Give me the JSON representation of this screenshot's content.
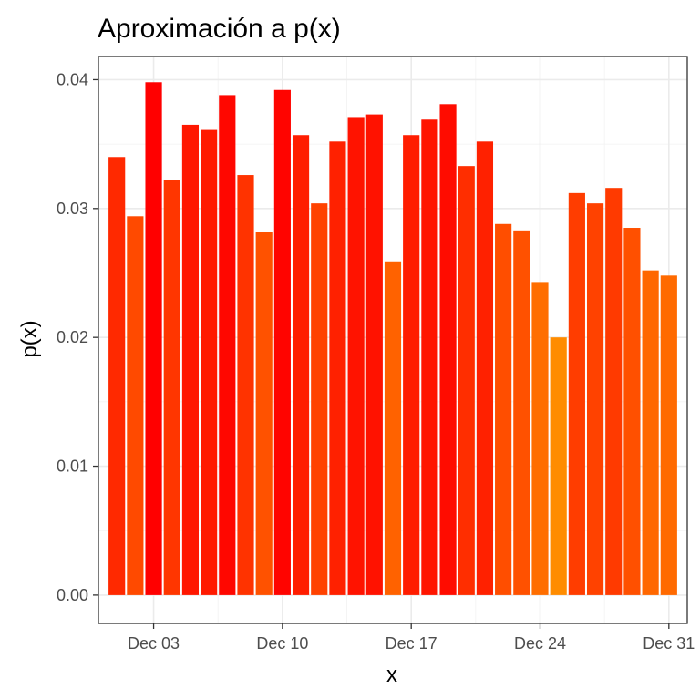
{
  "chart_data": {
    "type": "bar",
    "title": "Aproximación a p(x)",
    "xlabel": "x",
    "ylabel": "p(x)",
    "ylim": [
      -0.0022,
      0.0418
    ],
    "yticks": [
      0.0,
      0.01,
      0.02,
      0.03,
      0.04
    ],
    "ytick_labels": [
      "0.00",
      "0.01",
      "0.02",
      "0.03",
      "0.04"
    ],
    "xticks": [
      "2020-12-03",
      "2020-12-10",
      "2020-12-17",
      "2020-12-24",
      "2020-12-31"
    ],
    "xtick_labels": [
      "Dec 03",
      "Dec 10",
      "Dec 17",
      "Dec 24",
      "Dec 31"
    ],
    "xlim": [
      "2020-11-30",
      "2021-01-01"
    ],
    "grid": true,
    "legend": "none",
    "color_low": "#FF8C00",
    "color_high": "#FF0000",
    "categories": [
      "2020-12-01",
      "2020-12-02",
      "2020-12-03",
      "2020-12-04",
      "2020-12-05",
      "2020-12-06",
      "2020-12-07",
      "2020-12-08",
      "2020-12-09",
      "2020-12-10",
      "2020-12-11",
      "2020-12-12",
      "2020-12-13",
      "2020-12-14",
      "2020-12-15",
      "2020-12-16",
      "2020-12-17",
      "2020-12-18",
      "2020-12-19",
      "2020-12-20",
      "2020-12-21",
      "2020-12-22",
      "2020-12-23",
      "2020-12-24",
      "2020-12-25",
      "2020-12-26",
      "2020-12-27",
      "2020-12-28",
      "2020-12-29",
      "2020-12-30",
      "2020-12-31"
    ],
    "values": [
      0.034,
      0.0294,
      0.0398,
      0.0322,
      0.0365,
      0.0361,
      0.0388,
      0.0326,
      0.0282,
      0.0392,
      0.0357,
      0.0304,
      0.0352,
      0.0371,
      0.0373,
      0.0259,
      0.0357,
      0.0369,
      0.0381,
      0.0333,
      0.0352,
      0.0288,
      0.0283,
      0.0243,
      0.02,
      0.0312,
      0.0304,
      0.0316,
      0.0285,
      0.0252,
      0.0248
    ]
  }
}
